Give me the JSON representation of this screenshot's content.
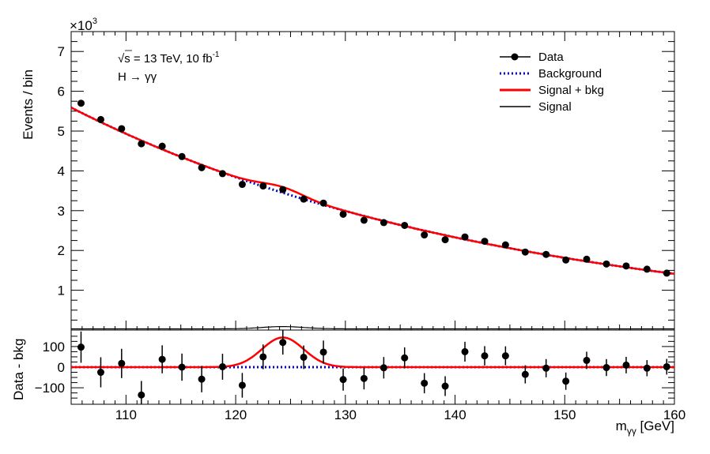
{
  "chart_data": [
    {
      "panel": "main",
      "type": "scatter",
      "ylabel": "Events / bin",
      "y_multiplier": "×10",
      "y_multiplier_exp": "3",
      "xlim": [
        105,
        160
      ],
      "ylim": [
        0,
        7.5
      ],
      "yticks": [
        1,
        2,
        3,
        4,
        5,
        6,
        7
      ],
      "annotations": {
        "energy_sqrt": "√",
        "energy_s": "s",
        "energy_text": " = 13 TeV, 10 fb",
        "lumi_exp": "-1",
        "process": "H → γγ"
      },
      "legend": {
        "position": "top-right",
        "entries": [
          {
            "label": "Data",
            "style": "marker",
            "color": "#000000"
          },
          {
            "label": "Background",
            "style": "dotted",
            "color": "#0000cc"
          },
          {
            "label": "Signal + bkg",
            "style": "solid",
            "color": "#ff0000"
          },
          {
            "label": "Signal",
            "style": "solid-thin",
            "color": "#000000"
          }
        ]
      },
      "series": [
        {
          "name": "Data",
          "color": "#000000",
          "x": [
            105.9,
            107.7,
            109.6,
            111.4,
            113.3,
            115.1,
            116.9,
            118.8,
            120.6,
            122.5,
            124.3,
            126.2,
            128.0,
            129.8,
            131.7,
            133.5,
            135.4,
            137.2,
            139.1,
            140.9,
            142.7,
            144.6,
            146.4,
            148.3,
            150.1,
            152.0,
            153.8,
            155.6,
            157.5,
            159.3
          ],
          "y": [
            5.7,
            5.29,
            5.06,
            4.68,
            4.62,
            4.36,
            4.08,
            3.93,
            3.66,
            3.62,
            3.53,
            3.29,
            3.19,
            2.91,
            2.76,
            2.7,
            2.63,
            2.39,
            2.27,
            2.34,
            2.23,
            2.14,
            1.96,
            1.9,
            1.76,
            1.78,
            1.66,
            1.61,
            1.53,
            1.43
          ],
          "yerr": [
            0.076,
            0.073,
            0.071,
            0.068,
            0.068,
            0.066,
            0.064,
            0.063,
            0.06,
            0.06,
            0.059,
            0.057,
            0.056,
            0.054,
            0.053,
            0.052,
            0.051,
            0.049,
            0.048,
            0.048,
            0.047,
            0.046,
            0.044,
            0.044,
            0.042,
            0.042,
            0.041,
            0.04,
            0.039,
            0.038
          ]
        }
      ]
    },
    {
      "panel": "ratio",
      "type": "scatter",
      "xlabel": "m",
      "xlabel_sub": "γγ",
      "xlabel_unit": " [GeV]",
      "ylabel": "Data - bkg",
      "xlim": [
        105,
        160
      ],
      "ylim": [
        -180,
        180
      ],
      "xticks": [
        110,
        120,
        130,
        140,
        150,
        160
      ],
      "yticks": [
        -100,
        0,
        100
      ],
      "ytick_labels": [
        "−100",
        "0",
        "100"
      ],
      "series": [
        {
          "name": "Data",
          "color": "#000000",
          "x": [
            105.9,
            107.7,
            109.6,
            111.4,
            113.3,
            115.1,
            116.9,
            118.8,
            120.6,
            122.5,
            124.3,
            126.2,
            128.0,
            129.8,
            131.7,
            133.5,
            135.4,
            137.2,
            139.1,
            140.9,
            142.7,
            144.6,
            146.4,
            148.3,
            150.1,
            152.0,
            153.8,
            155.6,
            157.5,
            159.3
          ],
          "y": [
            97,
            -25,
            18,
            -135,
            38,
            0,
            -58,
            2,
            -88,
            50,
            120,
            48,
            73,
            -60,
            -55,
            -3,
            45,
            -78,
            -92,
            75,
            55,
            55,
            -35,
            -5,
            -68,
            33,
            -2,
            10,
            -5,
            2
          ],
          "yerr": [
            76,
            73,
            71,
            68,
            68,
            66,
            64,
            63,
            60,
            60,
            59,
            57,
            56,
            54,
            53,
            52,
            51,
            49,
            48,
            48,
            47,
            46,
            44,
            44,
            42,
            42,
            41,
            40,
            39,
            38
          ]
        }
      ]
    }
  ]
}
